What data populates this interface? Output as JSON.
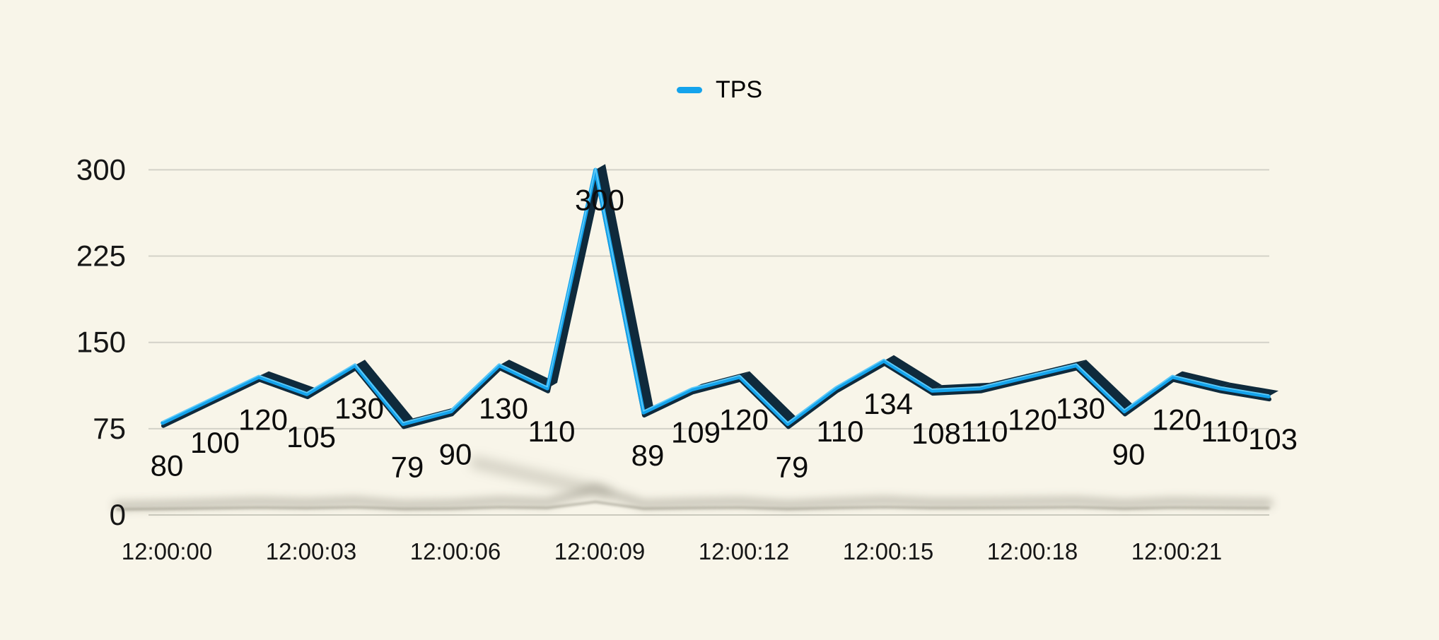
{
  "chart": {
    "title": "",
    "legend": {
      "label": "TPS",
      "position": "top-center"
    },
    "y_axis": {
      "tick_labels": [
        "0",
        "75",
        "150",
        "225",
        "300"
      ]
    },
    "x_axis": {
      "tick_labels": [
        "12:00:00",
        "12:00:03",
        "12:00:06",
        "12:00:09",
        "12:00:12",
        "12:00:15",
        "12:00:18",
        "12:00:21"
      ]
    }
  },
  "chart_data": {
    "type": "line",
    "style": "3d-ribbon",
    "title": "",
    "xlabel": "",
    "ylabel": "",
    "series": [
      {
        "name": "TPS",
        "values": [
          80,
          100,
          120,
          105,
          130,
          79,
          90,
          130,
          110,
          300,
          89,
          109,
          120,
          79,
          110,
          134,
          108,
          110,
          120,
          130,
          90,
          120,
          110,
          103
        ]
      }
    ],
    "x_tick_labels": [
      "12:00:00",
      "12:00:03",
      "12:00:06",
      "12:00:09",
      "12:00:12",
      "12:00:15",
      "12:00:18",
      "12:00:21"
    ],
    "points_per_x_tick": 3,
    "y_ticks": [
      0,
      75,
      150,
      225,
      300
    ],
    "ylim": [
      0,
      300
    ],
    "grid": "horizontal",
    "show_point_labels": true,
    "legend_position": "top-center"
  },
  "colors": {
    "background": "#F8F5E9",
    "gridline": "#D3D2C8",
    "zero_line": "#CBCABE",
    "axis_text": "#161616",
    "data_label_text": "#0C0C0C",
    "line": "#14A3EC",
    "line_highlight": "#66CDF8",
    "line_dark": "#0F2A3C",
    "floor_shadow": "#8F8C7E",
    "legend_text": "#000000"
  }
}
